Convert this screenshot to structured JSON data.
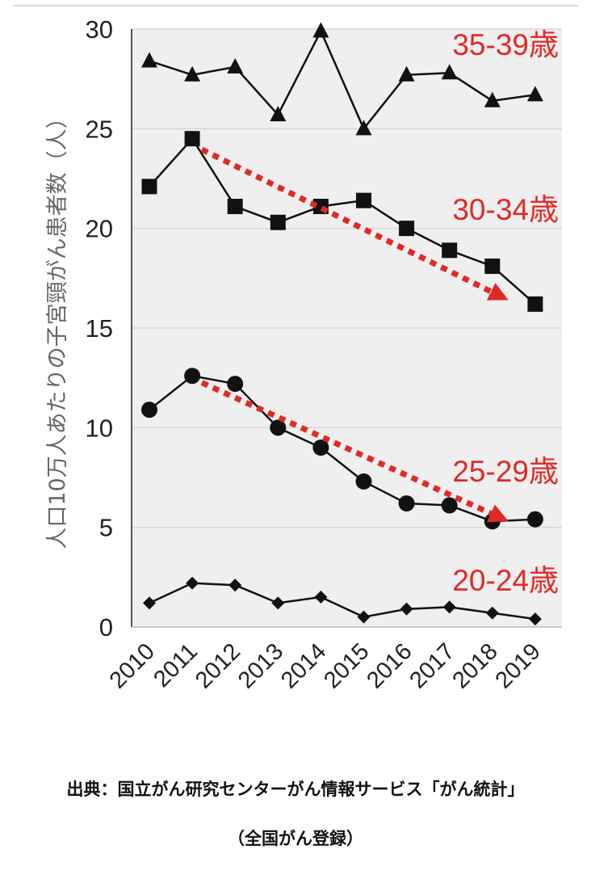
{
  "chart_data": {
    "type": "line",
    "title": "",
    "xlabel": "",
    "ylabel": "人口10万人あたりの子宮頸がん患者数（人）",
    "x": [
      "2010",
      "2011",
      "2012",
      "2013",
      "2014",
      "2015",
      "2016",
      "2017",
      "2018",
      "2019"
    ],
    "ylim": [
      0,
      30
    ],
    "yticks": [
      0,
      5,
      10,
      15,
      20,
      25,
      30
    ],
    "grid": true,
    "series": [
      {
        "name": "35-39歳",
        "marker": "triangle",
        "values": [
          28.4,
          27.7,
          28.1,
          25.7,
          29.9,
          25.0,
          27.7,
          27.8,
          26.4,
          26.7
        ]
      },
      {
        "name": "30-34歳",
        "marker": "square",
        "values": [
          22.1,
          24.5,
          21.1,
          20.3,
          21.1,
          21.4,
          20.0,
          18.9,
          18.1,
          16.2
        ]
      },
      {
        "name": "25-29歳",
        "marker": "circle",
        "values": [
          10.9,
          12.6,
          12.2,
          10.0,
          9.0,
          7.3,
          6.2,
          6.1,
          5.3,
          5.4
        ]
      },
      {
        "name": "20-24歳",
        "marker": "diamond",
        "values": [
          1.2,
          2.2,
          2.1,
          1.2,
          1.5,
          0.5,
          0.9,
          1.0,
          0.7,
          0.4
        ]
      }
    ],
    "trend_arrows": [
      {
        "series": "30-34歳",
        "from": {
          "x": "2011",
          "y": 24.2
        },
        "to": {
          "x": "2018",
          "y": 16.4
        }
      },
      {
        "series": "25-29歳",
        "from": {
          "x": "2011",
          "y": 12.5
        },
        "to": {
          "x": "2018",
          "y": 5.3
        }
      }
    ]
  },
  "source": {
    "line1": "出典：国立がん研究センターがん情報サービス「がん統計」",
    "line2": "（全国がん登録）"
  },
  "colors": {
    "plot_background": "#efefef",
    "series": "#111111",
    "accent": "#e02a26"
  }
}
